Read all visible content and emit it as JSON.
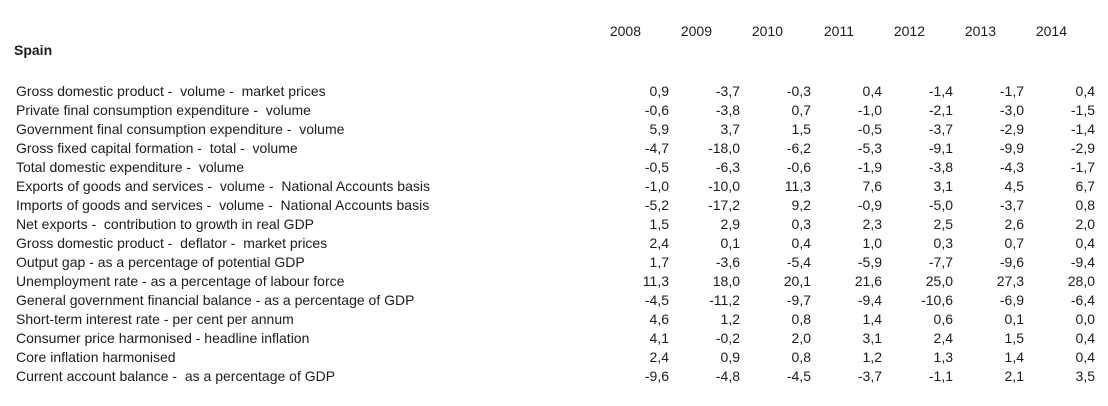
{
  "region_title": "Spain",
  "table": {
    "years": [
      "2008",
      "2009",
      "2010",
      "2011",
      "2012",
      "2013",
      "2014"
    ],
    "rows": [
      {
        "label": "Gross domestic product -  volume -  market prices",
        "values": [
          "0,9",
          "-3,7",
          "-0,3",
          "0,4",
          "-1,4",
          "-1,7",
          "0,4"
        ]
      },
      {
        "label": "Private final consumption expenditure -  volume",
        "values": [
          "-0,6",
          "-3,8",
          "0,7",
          "-1,0",
          "-2,1",
          "-3,0",
          "-1,5"
        ]
      },
      {
        "label": "Government final consumption expenditure -  volume",
        "values": [
          "5,9",
          "3,7",
          "1,5",
          "-0,5",
          "-3,7",
          "-2,9",
          "-1,4"
        ]
      },
      {
        "label": "Gross fixed capital formation -  total -  volume",
        "values": [
          "-4,7",
          "-18,0",
          "-6,2",
          "-5,3",
          "-9,1",
          "-9,9",
          "-2,9"
        ]
      },
      {
        "label": "Total domestic expenditure -  volume",
        "values": [
          "-0,5",
          "-6,3",
          "-0,6",
          "-1,9",
          "-3,8",
          "-4,3",
          "-1,7"
        ]
      },
      {
        "label": "Exports of goods and services -  volume -  National Accounts basis",
        "values": [
          "-1,0",
          "-10,0",
          "11,3",
          "7,6",
          "3,1",
          "4,5",
          "6,7"
        ]
      },
      {
        "label": "Imports of goods and services -  volume -  National Accounts basis",
        "values": [
          "-5,2",
          "-17,2",
          "9,2",
          "-0,9",
          "-5,0",
          "-3,7",
          "0,8"
        ]
      },
      {
        "label": "Net exports -  contribution to growth in real GDP",
        "values": [
          "1,5",
          "2,9",
          "0,3",
          "2,3",
          "2,5",
          "2,6",
          "2,0"
        ]
      },
      {
        "label": "Gross domestic product -  deflator -  market prices",
        "values": [
          "2,4",
          "0,1",
          "0,4",
          "1,0",
          "0,3",
          "0,7",
          "0,4"
        ]
      },
      {
        "label": "Output gap - as a percentage of potential GDP",
        "values": [
          "1,7",
          "-3,6",
          "-5,4",
          "-5,9",
          "-7,7",
          "-9,6",
          "-9,4"
        ]
      },
      {
        "label": "Unemployment rate - as a percentage of labour force",
        "values": [
          "11,3",
          "18,0",
          "20,1",
          "21,6",
          "25,0",
          "27,3",
          "28,0"
        ]
      },
      {
        "label": "General government financial balance - as a percentage of GDP",
        "values": [
          "-4,5",
          "-11,2",
          "-9,7",
          "-9,4",
          "-10,6",
          "-6,9",
          "-6,4"
        ]
      },
      {
        "label": "Short-term interest rate - per cent per annum",
        "values": [
          "4,6",
          "1,2",
          "0,8",
          "1,4",
          "0,6",
          "0,1",
          "0,0"
        ]
      },
      {
        "label": "Consumer price harmonised - headline inflation",
        "values": [
          "4,1",
          "-0,2",
          "2,0",
          "3,1",
          "2,4",
          "1,5",
          "0,4"
        ]
      },
      {
        "label": "Core inflation harmonised",
        "values": [
          "2,4",
          "0,9",
          "0,8",
          "1,2",
          "1,3",
          "1,4",
          "0,4"
        ]
      },
      {
        "label": "Current account balance -  as a percentage of GDP",
        "values": [
          "-9,6",
          "-4,8",
          "-4,5",
          "-3,7",
          "-1,1",
          "2,1",
          "3,5"
        ]
      }
    ]
  },
  "chart_data": {
    "type": "table",
    "title": "Spain",
    "categories": [
      "2008",
      "2009",
      "2010",
      "2011",
      "2012",
      "2013",
      "2014"
    ],
    "series": [
      {
        "name": "Gross domestic product - volume - market prices",
        "values": [
          0.9,
          -3.7,
          -0.3,
          0.4,
          -1.4,
          -1.7,
          0.4
        ]
      },
      {
        "name": "Private final consumption expenditure - volume",
        "values": [
          -0.6,
          -3.8,
          0.7,
          -1.0,
          -2.1,
          -3.0,
          -1.5
        ]
      },
      {
        "name": "Government final consumption expenditure - volume",
        "values": [
          5.9,
          3.7,
          1.5,
          -0.5,
          -3.7,
          -2.9,
          -1.4
        ]
      },
      {
        "name": "Gross fixed capital formation - total - volume",
        "values": [
          -4.7,
          -18.0,
          -6.2,
          -5.3,
          -9.1,
          -9.9,
          -2.9
        ]
      },
      {
        "name": "Total domestic expenditure - volume",
        "values": [
          -0.5,
          -6.3,
          -0.6,
          -1.9,
          -3.8,
          -4.3,
          -1.7
        ]
      },
      {
        "name": "Exports of goods and services - volume - National Accounts basis",
        "values": [
          -1.0,
          -10.0,
          11.3,
          7.6,
          3.1,
          4.5,
          6.7
        ]
      },
      {
        "name": "Imports of goods and services - volume - National Accounts basis",
        "values": [
          -5.2,
          -17.2,
          9.2,
          -0.9,
          -5.0,
          -3.7,
          0.8
        ]
      },
      {
        "name": "Net exports - contribution to growth in real GDP",
        "values": [
          1.5,
          2.9,
          0.3,
          2.3,
          2.5,
          2.6,
          2.0
        ]
      },
      {
        "name": "Gross domestic product - deflator - market prices",
        "values": [
          2.4,
          0.1,
          0.4,
          1.0,
          0.3,
          0.7,
          0.4
        ]
      },
      {
        "name": "Output gap - as a percentage of potential GDP",
        "values": [
          1.7,
          -3.6,
          -5.4,
          -5.9,
          -7.7,
          -9.6,
          -9.4
        ]
      },
      {
        "name": "Unemployment rate - as a percentage of labour force",
        "values": [
          11.3,
          18.0,
          20.1,
          21.6,
          25.0,
          27.3,
          28.0
        ]
      },
      {
        "name": "General government financial balance - as a percentage of GDP",
        "values": [
          -4.5,
          -11.2,
          -9.7,
          -9.4,
          -10.6,
          -6.9,
          -6.4
        ]
      },
      {
        "name": "Short-term interest rate - per cent per annum",
        "values": [
          4.6,
          1.2,
          0.8,
          1.4,
          0.6,
          0.1,
          0.0
        ]
      },
      {
        "name": "Consumer price harmonised - headline inflation",
        "values": [
          4.1,
          -0.2,
          2.0,
          3.1,
          2.4,
          1.5,
          0.4
        ]
      },
      {
        "name": "Core inflation harmonised",
        "values": [
          2.4,
          0.9,
          0.8,
          1.2,
          1.3,
          1.4,
          0.4
        ]
      },
      {
        "name": "Current account balance - as a percentage of GDP",
        "values": [
          -9.6,
          -4.8,
          -4.5,
          -3.7,
          -1.1,
          2.1,
          3.5
        ]
      }
    ]
  }
}
